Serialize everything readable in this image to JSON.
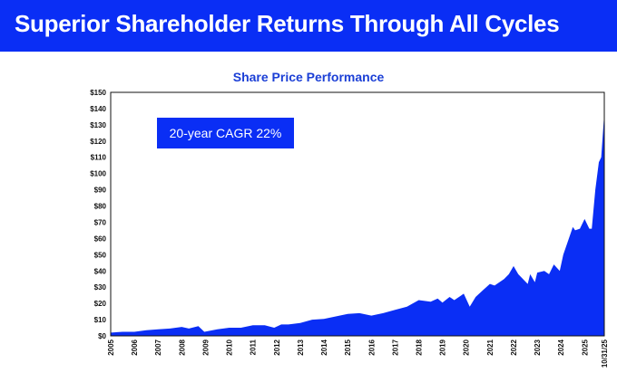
{
  "header": {
    "title": "Superior Shareholder Returns Through All Cycles"
  },
  "chart_data": {
    "type": "area",
    "title": "Share Price Performance",
    "annotation": "20-year CAGR 22%",
    "xlabel": "",
    "ylabel": "",
    "ylim": [
      0,
      150
    ],
    "xlim": [
      2005,
      2025.83
    ],
    "y_ticks": [
      "$0",
      "$10",
      "$20",
      "$30",
      "$40",
      "$50",
      "$60",
      "$70",
      "$80",
      "$90",
      "$100",
      "$110",
      "$120",
      "$130",
      "$140",
      "$150"
    ],
    "x_ticks": [
      "2005",
      "2006",
      "2007",
      "2008",
      "2009",
      "2010",
      "2011",
      "2012",
      "2013",
      "2014",
      "2015",
      "2016",
      "2017",
      "2018",
      "2019",
      "2020",
      "2021",
      "2022",
      "2023",
      "2024",
      "2025",
      "10/31/25"
    ],
    "grid": false,
    "color": "#0a2ef5",
    "series": [
      {
        "x": [
          2005.0,
          2005.5,
          2006.0,
          2006.5,
          2007.0,
          2007.5,
          2008.0,
          2008.3,
          2008.7,
          2008.95,
          2009.5,
          2010.0,
          2010.5,
          2011.0,
          2011.5,
          2011.9,
          2012.2,
          2012.5,
          2013.0,
          2013.5,
          2014.0,
          2014.5,
          2015.0,
          2015.5,
          2016.0,
          2016.5,
          2017.0,
          2017.5,
          2018.0,
          2018.5,
          2018.8,
          2019.0,
          2019.3,
          2019.5,
          2019.9,
          2020.15,
          2020.4,
          2020.7,
          2021.0,
          2021.2,
          2021.6,
          2021.8,
          2022.0,
          2022.2,
          2022.6,
          2022.7,
          2022.9,
          2023.0,
          2023.3,
          2023.5,
          2023.7,
          2023.95,
          2024.1,
          2024.5,
          2024.6,
          2024.8,
          2025.0,
          2025.2,
          2025.3,
          2025.45,
          2025.6,
          2025.7,
          2025.83
        ],
        "y": [
          2,
          2.5,
          2.5,
          3.5,
          4,
          4.5,
          5.5,
          4.5,
          6,
          2.5,
          4,
          5,
          5,
          6.5,
          6.5,
          5,
          7,
          7,
          8,
          10,
          10.5,
          12,
          13.5,
          14,
          12.5,
          14,
          16,
          18,
          22,
          21,
          23,
          20.5,
          24,
          22,
          26,
          18,
          24,
          28,
          32,
          31,
          35,
          38,
          43,
          38,
          32,
          38,
          33,
          39,
          40,
          38,
          44,
          40,
          50,
          67,
          65,
          66,
          72,
          66,
          66,
          90,
          107,
          110,
          137
        ]
      }
    ]
  }
}
